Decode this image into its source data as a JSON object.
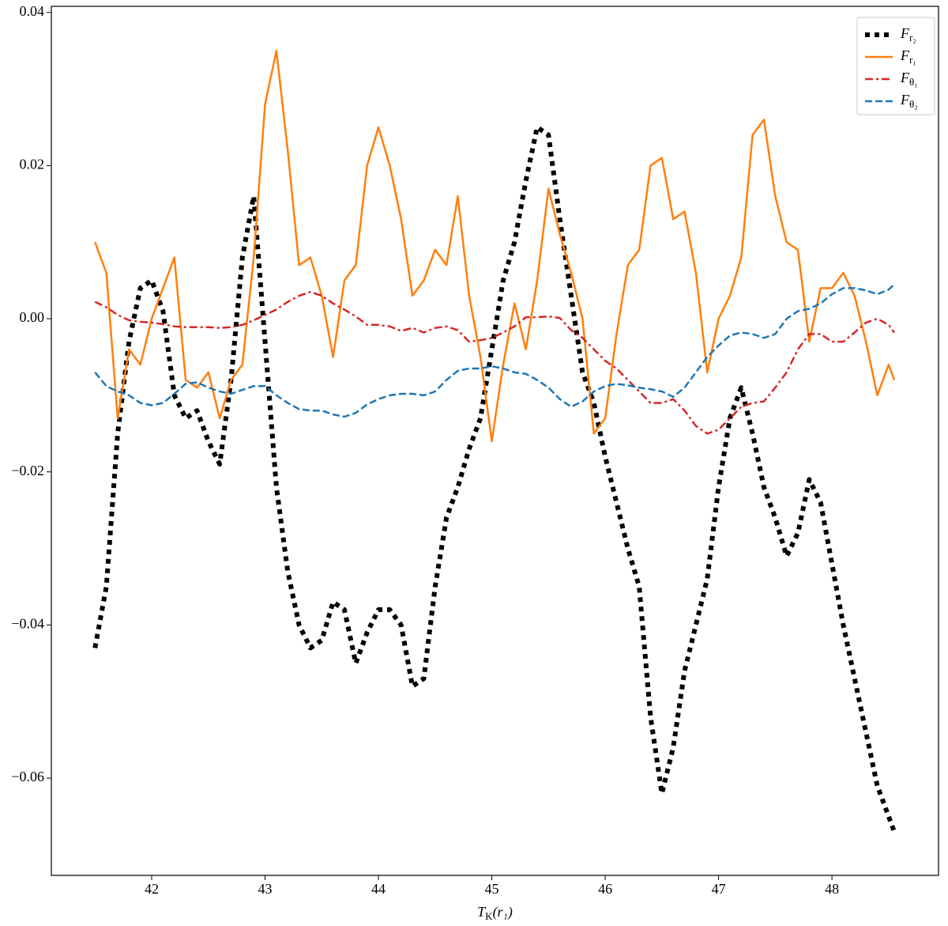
{
  "chart_data": {
    "type": "line",
    "xlabel": [
      "T",
      "K",
      "(r₁)"
    ],
    "x": [
      41.5,
      41.6,
      41.7,
      41.8,
      41.9,
      42.0,
      42.1,
      42.2,
      42.3,
      42.4,
      42.5,
      42.6,
      42.7,
      42.8,
      42.9,
      43.0,
      43.1,
      43.2,
      43.3,
      43.4,
      43.5,
      43.6,
      43.7,
      43.8,
      43.9,
      44.0,
      44.1,
      44.2,
      44.3,
      44.4,
      44.5,
      44.6,
      44.7,
      44.8,
      44.9,
      45.0,
      45.1,
      45.2,
      45.3,
      45.4,
      45.5,
      45.6,
      45.7,
      45.8,
      45.9,
      46.0,
      46.1,
      46.2,
      46.3,
      46.4,
      46.5,
      46.6,
      46.7,
      46.8,
      46.9,
      47.0,
      47.1,
      47.2,
      47.3,
      47.4,
      47.5,
      47.6,
      47.7,
      47.8,
      47.9,
      48.0,
      48.1,
      48.2,
      48.3,
      48.4,
      48.5,
      48.55
    ],
    "series": [
      {
        "name": [
          "F",
          "r₂"
        ],
        "color": "#000000",
        "style": "dotted",
        "values": [
          -0.043,
          -0.035,
          -0.015,
          -0.003,
          0.004,
          0.005,
          0.001,
          -0.01,
          -0.013,
          -0.012,
          -0.016,
          -0.019,
          -0.008,
          0.008,
          0.016,
          -0.003,
          -0.022,
          -0.033,
          -0.04,
          -0.043,
          -0.042,
          -0.037,
          -0.038,
          -0.045,
          -0.041,
          -0.038,
          -0.038,
          -0.04,
          -0.048,
          -0.047,
          -0.035,
          -0.026,
          -0.022,
          -0.017,
          -0.013,
          -0.004,
          0.005,
          0.01,
          0.018,
          0.025,
          0.024,
          0.013,
          0.003,
          -0.007,
          -0.011,
          -0.018,
          -0.024,
          -0.03,
          -0.035,
          -0.052,
          -0.062,
          -0.056,
          -0.046,
          -0.04,
          -0.034,
          -0.022,
          -0.013,
          -0.009,
          -0.015,
          -0.022,
          -0.026,
          -0.031,
          -0.028,
          -0.021,
          -0.024,
          -0.032,
          -0.04,
          -0.047,
          -0.054,
          -0.061,
          -0.065,
          -0.067
        ]
      },
      {
        "name": [
          "F",
          "r₁"
        ],
        "color": "#ff7f0e",
        "style": "solid",
        "values": [
          0.01,
          0.006,
          -0.013,
          -0.004,
          -0.006,
          0.0,
          0.004,
          0.008,
          -0.008,
          -0.009,
          -0.007,
          -0.013,
          -0.008,
          -0.006,
          0.008,
          0.028,
          0.035,
          0.022,
          0.007,
          0.008,
          0.003,
          -0.005,
          0.005,
          0.007,
          0.02,
          0.025,
          0.02,
          0.013,
          0.003,
          0.005,
          0.009,
          0.007,
          0.016,
          0.003,
          -0.005,
          -0.016,
          -0.006,
          0.002,
          -0.004,
          0.005,
          0.017,
          0.011,
          0.006,
          0.0,
          -0.015,
          -0.013,
          -0.002,
          0.007,
          0.009,
          0.02,
          0.021,
          0.013,
          0.014,
          0.006,
          -0.007,
          0.0,
          0.003,
          0.008,
          0.024,
          0.026,
          0.016,
          0.01,
          0.009,
          -0.003,
          0.004,
          0.004,
          0.006,
          0.003,
          -0.003,
          -0.01,
          -0.006,
          -0.008
        ]
      },
      {
        "name": [
          "F",
          "θ₁"
        ],
        "color": "#d62728",
        "style": "dashdot",
        "values": [
          0.0022,
          0.0015,
          0.0005,
          -0.0002,
          -0.0004,
          -0.0005,
          -0.0007,
          -0.001,
          -0.0011,
          -0.0011,
          -0.0011,
          -0.0012,
          -0.0011,
          -0.0008,
          -0.0002,
          0.0005,
          0.0012,
          0.0022,
          0.003,
          0.0035,
          0.003,
          0.002,
          0.0012,
          0.0003,
          -0.0008,
          -0.0008,
          -0.001,
          -0.0016,
          -0.0012,
          -0.0018,
          -0.0012,
          -0.001,
          -0.0015,
          -0.003,
          -0.0028,
          -0.0025,
          -0.0018,
          -0.001,
          0.0002,
          0.0002,
          0.0003,
          0.0001,
          -0.0015,
          -0.0025,
          -0.004,
          -0.0055,
          -0.0065,
          -0.008,
          -0.0095,
          -0.011,
          -0.011,
          -0.0105,
          -0.012,
          -0.014,
          -0.015,
          -0.0145,
          -0.013,
          -0.0115,
          -0.011,
          -0.0108,
          -0.009,
          -0.007,
          -0.004,
          -0.002,
          -0.002,
          -0.003,
          -0.003,
          -0.0018,
          -0.0005,
          0.0,
          -0.0008,
          -0.0018
        ]
      },
      {
        "name": [
          "F",
          "θ₂"
        ],
        "color": "#1f77b4",
        "style": "dashed",
        "values": [
          -0.007,
          -0.0088,
          -0.0095,
          -0.01,
          -0.011,
          -0.0113,
          -0.011,
          -0.0098,
          -0.0085,
          -0.0083,
          -0.009,
          -0.0095,
          -0.0098,
          -0.0093,
          -0.0088,
          -0.0088,
          -0.01,
          -0.011,
          -0.0118,
          -0.012,
          -0.012,
          -0.0125,
          -0.0128,
          -0.0123,
          -0.0112,
          -0.0105,
          -0.01,
          -0.0098,
          -0.0098,
          -0.01,
          -0.0095,
          -0.008,
          -0.0068,
          -0.0065,
          -0.0065,
          -0.0062,
          -0.0065,
          -0.007,
          -0.0072,
          -0.008,
          -0.009,
          -0.0105,
          -0.0115,
          -0.0108,
          -0.0095,
          -0.0088,
          -0.0085,
          -0.0087,
          -0.009,
          -0.0092,
          -0.0095,
          -0.0102,
          -0.009,
          -0.007,
          -0.005,
          -0.0035,
          -0.0022,
          -0.0018,
          -0.002,
          -0.0025,
          -0.002,
          0.0,
          0.001,
          0.0013,
          0.002,
          0.0032,
          0.004,
          0.004,
          0.0037,
          0.0032,
          0.0038,
          0.0045
        ]
      }
    ],
    "xlim": [
      41.115,
      48.94
    ],
    "xticks": [
      42,
      43,
      44,
      45,
      46,
      47,
      48
    ],
    "ylim": [
      -0.0727,
      0.0408
    ],
    "yticks": [
      {
        "value": -0.06,
        "label": "−0.06"
      },
      {
        "value": -0.04,
        "label": "−0.04"
      },
      {
        "value": -0.02,
        "label": "−0.02"
      },
      {
        "value": 0,
        "label": "0.00"
      },
      {
        "value": 0.02,
        "label": "0.02"
      },
      {
        "value": 0.04,
        "label": "0.04"
      }
    ],
    "legend": "upper right",
    "grid": false
  }
}
